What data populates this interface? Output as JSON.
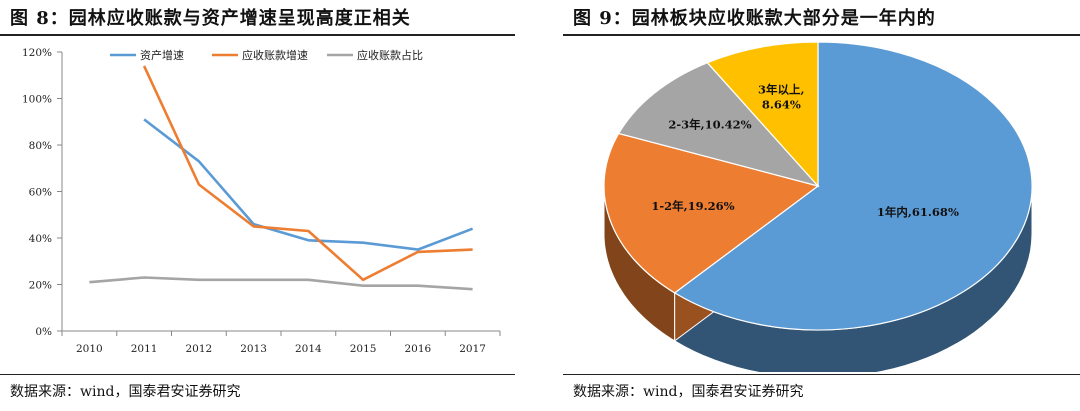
{
  "left": {
    "title": "图 8：园林应收账款与资产增速呈现高度正相关",
    "source": "数据来源：wind，国泰君安证券研究"
  },
  "right": {
    "title": "图 9：园林板块应收账款大部分是一年内的",
    "source": "数据来源：wind，国泰君安证券研究"
  },
  "chart_data": [
    {
      "type": "line",
      "x": [
        "2010",
        "2011",
        "2012",
        "2013",
        "2014",
        "2015",
        "2016",
        "2017"
      ],
      "ylim": [
        0,
        120
      ],
      "yticks": [
        "0%",
        "20%",
        "40%",
        "60%",
        "80%",
        "100%",
        "120%"
      ],
      "legend_position": "top",
      "series": [
        {
          "name": "资产增速",
          "color": "#5b9bd5",
          "values": [
            null,
            91,
            73,
            46,
            39,
            38,
            35,
            44
          ]
        },
        {
          "name": "应收账款增速",
          "color": "#ed7d31",
          "values": [
            null,
            114,
            63,
            45,
            43,
            22,
            34,
            35
          ]
        },
        {
          "name": "应收账款占比",
          "color": "#a5a5a5",
          "values": [
            21,
            23,
            22,
            22,
            22,
            19.5,
            19.5,
            18
          ]
        }
      ]
    },
    {
      "type": "pie",
      "style": "3d",
      "slices": [
        {
          "label": "1年内,61.68%",
          "value": 61.68,
          "color": "#5b9bd5"
        },
        {
          "label": "1-2年,19.26%",
          "value": 19.26,
          "color": "#ed7d31"
        },
        {
          "label": "2-3年,10.42%",
          "value": 10.42,
          "color": "#a5a5a5"
        },
        {
          "label_lines": [
            "3年以上,",
            "8.64%"
          ],
          "value": 8.64,
          "color": "#ffc000"
        }
      ]
    }
  ]
}
